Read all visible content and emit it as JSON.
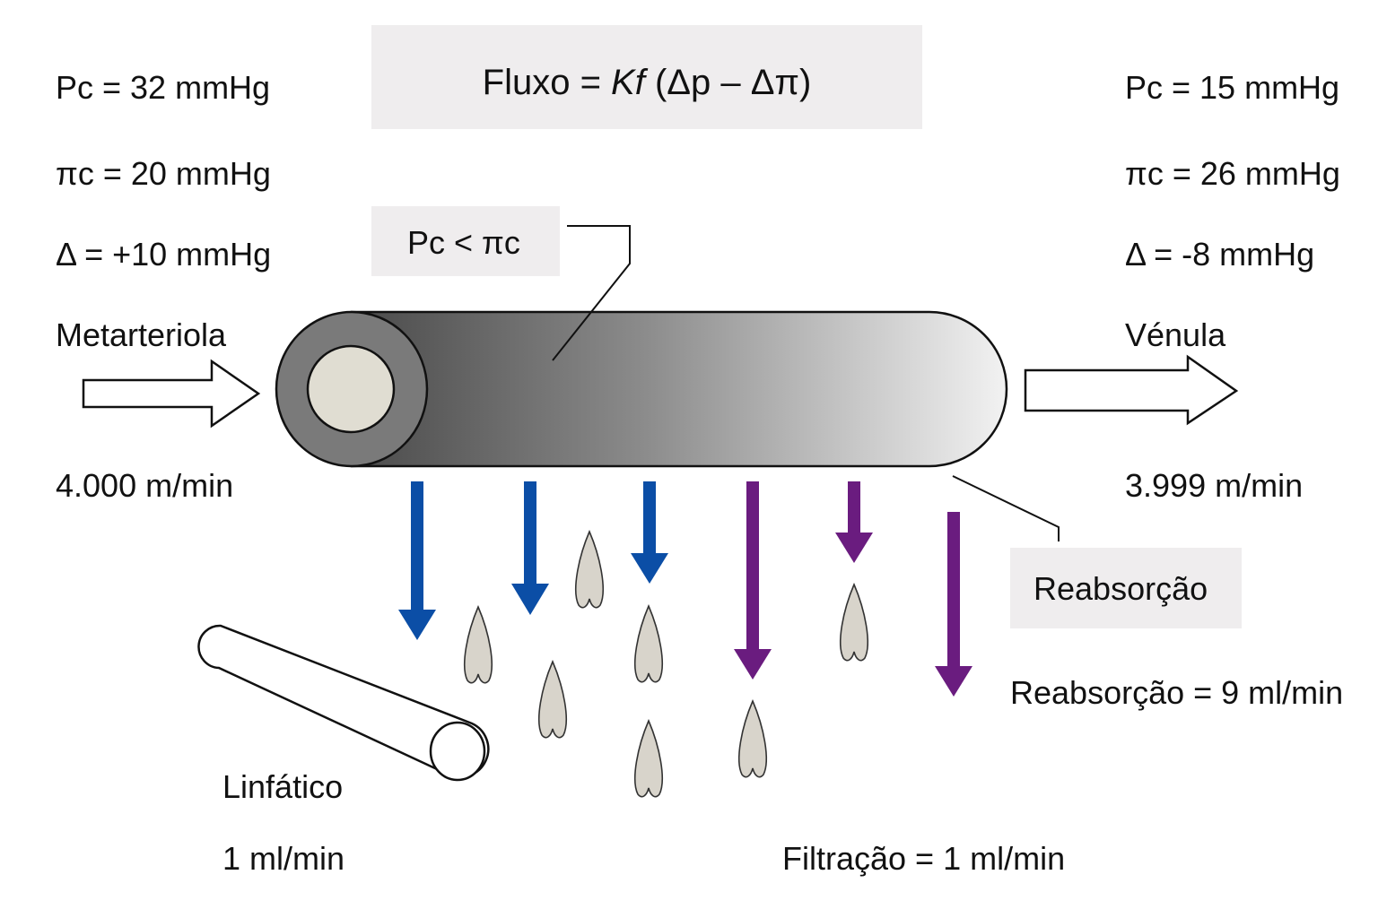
{
  "formula": {
    "prefix": "Fluxo = ",
    "kf": "Kf",
    "delta_part": " (Δp – Δπ)"
  },
  "condition_label": "Pc < πc",
  "arterial": {
    "pc": "Pc = 32 mmHg",
    "pic": "πc = 20 mmHg",
    "delta": "Δ = +10 mmHg",
    "vessel": "Metarteriola",
    "flow": "4.000 m/min"
  },
  "venous": {
    "pc": "Pc = 15 mmHg",
    "pic": "πc = 26 mmHg",
    "delta": "Δ = -8 mmHg",
    "vessel": "Vénula",
    "flow": "3.999 m/min"
  },
  "reabsorption_label": "Reabsorção",
  "reabsorption_rate": "Reabsorção = 9 ml/min",
  "lymphatic": {
    "label": "Linfático",
    "flow": "1 ml/min"
  },
  "filtration_rate": "Filtração = 1 ml/min",
  "colors": {
    "filtration_arrow": "#0b4ea6",
    "reabsorption_arrow": "#6a1c7f",
    "droplet": "#d8d4cb",
    "box_background": "#efedee",
    "capillary_dark": "#4a4a4a",
    "capillary_light": "#f2f2f2"
  }
}
